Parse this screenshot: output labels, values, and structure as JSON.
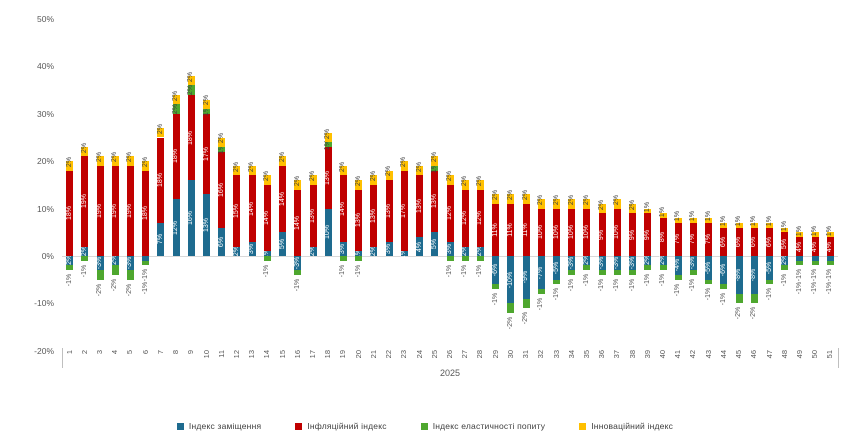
{
  "chart_data": {
    "type": "bar",
    "stacked": true,
    "title": "",
    "x_group_label": "2025",
    "categories": [
      1,
      2,
      3,
      4,
      5,
      6,
      7,
      8,
      9,
      10,
      11,
      12,
      13,
      14,
      15,
      16,
      17,
      18,
      19,
      20,
      21,
      22,
      23,
      24,
      25,
      26,
      27,
      28,
      29,
      30,
      31,
      32,
      33,
      34,
      35,
      36,
      37,
      38,
      39,
      40,
      41,
      42,
      43,
      44,
      45,
      46,
      47,
      48,
      49,
      50,
      51
    ],
    "series": [
      {
        "name": "Індекс заміщення",
        "color": "#1e6b8f",
        "values": [
          -2,
          2,
          -3,
          -2,
          -3,
          -1,
          7,
          12,
          16,
          13,
          6,
          2,
          3,
          1,
          5,
          -3,
          2,
          10,
          3,
          1,
          2,
          3,
          1,
          4,
          5,
          3,
          2,
          2,
          -6,
          -10,
          -9,
          -7,
          -5,
          -3,
          -2,
          -3,
          -3,
          -3,
          -2,
          -2,
          -4,
          -3,
          -5,
          -6,
          -8,
          -8,
          -5,
          -2,
          -1,
          -1,
          -1
        ]
      },
      {
        "name": "Інфляційний індекс",
        "color": "#c00000",
        "values": [
          18,
          19,
          19,
          19,
          19,
          18,
          18,
          18,
          18,
          17,
          16,
          15,
          14,
          14,
          14,
          14,
          13,
          13,
          14,
          13,
          13,
          13,
          17,
          13,
          13,
          12,
          12,
          12,
          11,
          11,
          11,
          10,
          10,
          10,
          10,
          9,
          10,
          9,
          9,
          8,
          7,
          7,
          7,
          6,
          6,
          6,
          6,
          5,
          4,
          4,
          4
        ]
      },
      {
        "name": "Індекс еластичності попиту",
        "color": "#4ea72e",
        "values": [
          -1,
          -1,
          -2,
          -2,
          -2,
          -1,
          0,
          2,
          2,
          1,
          1,
          0,
          0,
          -1,
          0,
          -1,
          0,
          1,
          -1,
          -1,
          0,
          0,
          0,
          0,
          1,
          -1,
          -1,
          -1,
          -1,
          -2,
          -2,
          -1,
          -1,
          -1,
          -1,
          -1,
          -1,
          -1,
          -1,
          -1,
          -1,
          -1,
          -1,
          -1,
          -2,
          -2,
          -1,
          -1,
          -1,
          -1,
          -1
        ]
      },
      {
        "name": "Інноваційний індекс",
        "color": "#ffc000",
        "values": [
          2,
          2,
          2,
          2,
          2,
          2,
          2,
          2,
          2,
          2,
          2,
          2,
          2,
          2,
          2,
          2,
          2,
          2,
          2,
          2,
          2,
          2,
          2,
          2,
          2,
          2,
          2,
          2,
          2,
          2,
          2,
          2,
          2,
          2,
          2,
          2,
          2,
          2,
          1,
          1,
          1,
          1,
          1,
          1,
          1,
          1,
          1,
          1,
          1,
          1,
          1
        ]
      }
    ],
    "ylim": [
      -20,
      50
    ],
    "y_ticks": [
      {
        "value": 50,
        "label": "50%"
      },
      {
        "value": 40,
        "label": "40%"
      },
      {
        "value": 30,
        "label": "30%"
      },
      {
        "value": 20,
        "label": "20%"
      },
      {
        "value": 10,
        "label": "10%"
      },
      {
        "value": 0,
        "label": "0%"
      },
      {
        "value": -10,
        "label": "-10%"
      },
      {
        "value": -20,
        "label": "-20%"
      }
    ],
    "grid": "zero-line-only",
    "legend_position": "bottom",
    "label_colors": {
      "inside": "#ffffff",
      "outside": "#595959",
      "on_light": "#404040"
    }
  }
}
